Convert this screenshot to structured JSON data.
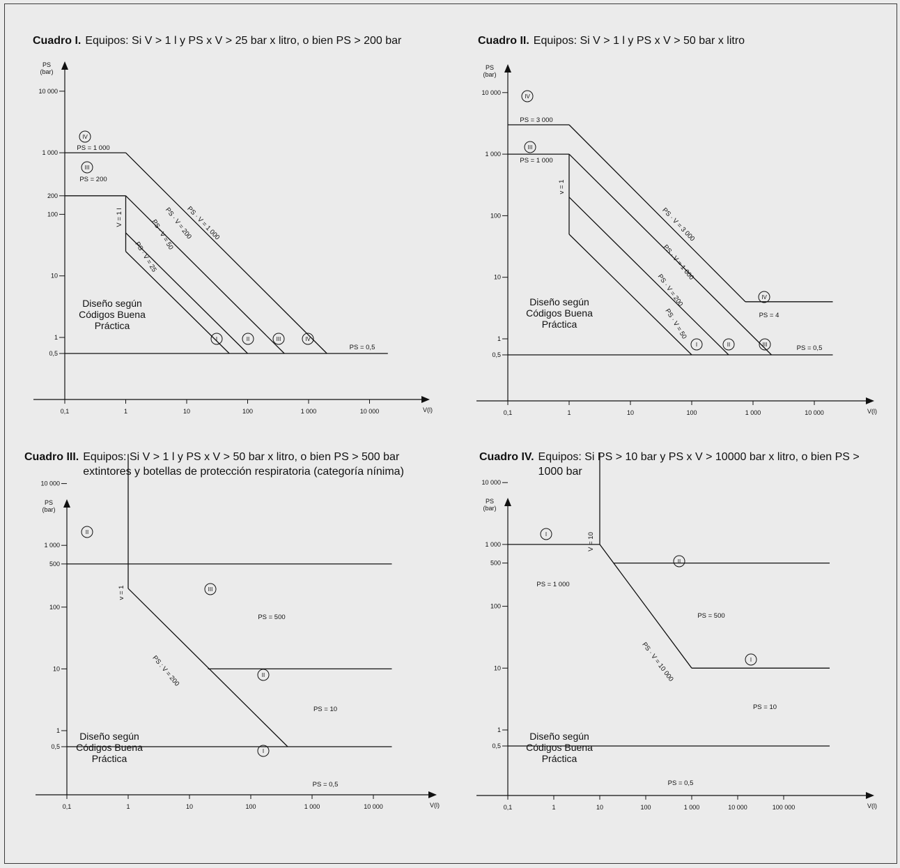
{
  "charts": [
    {
      "caption_title": "Cuadro I.",
      "caption_text": "Equipos: Si V > 1 l y PS x V > 25 bar x litro, o bien PS > 200 bar",
      "y_axis_label": [
        "PS",
        "(bar)"
      ],
      "x_axis_label": "V(l)",
      "y_ticks": [
        "10 000",
        "1 000",
        "200",
        "100",
        "10",
        "1",
        "0,5"
      ],
      "x_ticks": [
        "0,1",
        "1",
        "10",
        "100",
        "1 000",
        "10 000"
      ],
      "region_text": [
        "Diseño según",
        "Códigos Buena",
        "Práctica"
      ],
      "labels": [
        "PS = 1 000",
        "PS = 200",
        "V = 1 l",
        "PS · V = 25",
        "PS · V = 50",
        "PS · V = 200",
        "PS · V = 1 000",
        "PS = 0,5"
      ],
      "romans": [
        "IV",
        "III",
        "I",
        "II",
        "III",
        "IV"
      ]
    },
    {
      "caption_title": "Cuadro II.",
      "caption_text": "Equipos: Si V > 1 l y PS x V > 50 bar x litro",
      "y_axis_label": [
        "PS",
        "(bar)"
      ],
      "x_axis_label": "V(l)",
      "y_ticks": [
        "10 000",
        "1 000",
        "100",
        "10",
        "1",
        "0,5"
      ],
      "x_ticks": [
        "0,1",
        "1",
        "10",
        "100",
        "1 000",
        "10 000"
      ],
      "region_text": [
        "Diseño según",
        "Códigos Buena",
        "Práctica"
      ],
      "labels": [
        "PS = 3 000",
        "PS = 1 000",
        "v = 1",
        "PS · V = 50",
        "PS · V = 200",
        "PS · V = 1 000",
        "PS · V = 3 000",
        "PS = 4",
        "PS = 0,5"
      ],
      "romans": [
        "IV",
        "III",
        "I",
        "II",
        "III",
        "IV"
      ]
    },
    {
      "caption_title": "Cuadro III.",
      "caption_text": "Equipos: Si V > 1 l y PS x V > 50 bar x litro, o bien PS > 500 bar extintores y botellas de protección respiratoria (categoría nínima)",
      "y_axis_label": [
        "PS",
        "(bar)"
      ],
      "x_axis_label": "V(l)",
      "y_ticks": [
        "10 000",
        "1 000",
        "500",
        "100",
        "10",
        "1",
        "0,5"
      ],
      "x_ticks": [
        "0,1",
        "1",
        "10",
        "100",
        "1 000",
        "10 000"
      ],
      "region_text": [
        "Diseño según",
        "Códigos Buena",
        "Práctica"
      ],
      "labels": [
        "v = 1",
        "PS = 500",
        "PS : V = 200",
        "PS = 10",
        "PS = 0,5"
      ],
      "romans": [
        "II",
        "III",
        "II",
        "I"
      ]
    },
    {
      "caption_title": "Cuadro IV.",
      "caption_text": "Equipos: Si PS > 10 bar y PS x V > 10000 bar x litro, o bien PS > 1000 bar",
      "y_axis_label": [
        "PS",
        "(bar)"
      ],
      "x_axis_label": "V(l)",
      "y_ticks": [
        "10 000",
        "1 000",
        "500",
        "100",
        "10",
        "1",
        "0,5"
      ],
      "x_ticks": [
        "0,1",
        "1",
        "10",
        "100",
        "1 000",
        "10 000",
        "100 000"
      ],
      "region_text": [
        "Diseño según",
        "Códigos Buena",
        "Práctica"
      ],
      "labels": [
        "V = 10",
        "PS = 1 000",
        "PS = 500",
        "PS · V = 10 000",
        "PS = 10",
        "PS = 0,5"
      ],
      "romans": [
        "I",
        "II",
        "I"
      ]
    }
  ],
  "chart_data": [
    {
      "type": "line",
      "title": "Cuadro I. Equipos: Si V > 1 l y PS x V > 25 bar x litro, o bien PS > 200 bar",
      "xlabel": "V(l)",
      "ylabel": "PS (bar)",
      "x_scale": "log",
      "y_scale": "log",
      "xlim": [
        0.1,
        20000
      ],
      "ylim": [
        0.5,
        10000
      ],
      "series": [
        {
          "name": "PS = 1 000",
          "x": [
            0.1,
            1
          ],
          "y": [
            1000,
            1000
          ]
        },
        {
          "name": "PS = 200",
          "x": [
            0.1,
            1
          ],
          "y": [
            200,
            200
          ]
        },
        {
          "name": "V = 1 l",
          "x": [
            1,
            1
          ],
          "y": [
            25,
            200
          ]
        },
        {
          "name": "PS · V = 25",
          "x": [
            1,
            50
          ],
          "y": [
            25,
            0.5
          ]
        },
        {
          "name": "PS · V = 50",
          "x": [
            1,
            100
          ],
          "y": [
            50,
            0.5
          ]
        },
        {
          "name": "PS · V = 200",
          "x": [
            1,
            400
          ],
          "y": [
            200,
            0.5
          ]
        },
        {
          "name": "PS · V = 1 000",
          "x": [
            1,
            2000
          ],
          "y": [
            1000,
            0.5
          ]
        },
        {
          "name": "PS = 0,5",
          "x": [
            0.1,
            20000
          ],
          "y": [
            0.5,
            0.5
          ]
        }
      ]
    },
    {
      "type": "line",
      "title": "Cuadro II. Equipos: Si V > 1 l y PS x V > 50 bar x litro",
      "xlabel": "V(l)",
      "ylabel": "PS (bar)",
      "x_scale": "log",
      "y_scale": "log",
      "xlim": [
        0.1,
        20000
      ],
      "ylim": [
        0.5,
        10000
      ],
      "series": [
        {
          "name": "PS = 3 000",
          "x": [
            0.1,
            1
          ],
          "y": [
            3000,
            3000
          ]
        },
        {
          "name": "PS = 1 000",
          "x": [
            0.1,
            1
          ],
          "y": [
            1000,
            1000
          ]
        },
        {
          "name": "v = 1",
          "x": [
            1,
            1
          ],
          "y": [
            50,
            1000
          ]
        },
        {
          "name": "PS · V = 50",
          "x": [
            1,
            100
          ],
          "y": [
            50,
            0.5
          ]
        },
        {
          "name": "PS · V = 200",
          "x": [
            1,
            400
          ],
          "y": [
            200,
            0.5
          ]
        },
        {
          "name": "PS · V = 1 000",
          "x": [
            1,
            2000
          ],
          "y": [
            1000,
            0.5
          ]
        },
        {
          "name": "PS · V = 3 000",
          "x": [
            1,
            750
          ],
          "y": [
            3000,
            4
          ]
        },
        {
          "name": "PS = 4",
          "x": [
            750,
            20000
          ],
          "y": [
            4,
            4
          ]
        },
        {
          "name": "PS = 0,5",
          "x": [
            0.1,
            20000
          ],
          "y": [
            0.5,
            0.5
          ]
        }
      ]
    },
    {
      "type": "line",
      "title": "Cuadro III. Equipos: Si V > 1 l y PS x V > 50 bar x litro, o bien PS > 500 bar extintores y botellas de protección respiratoria (categoría nínima)",
      "xlabel": "V(l)",
      "ylabel": "PS (bar)",
      "x_scale": "log",
      "y_scale": "log",
      "xlim": [
        0.1,
        20000
      ],
      "ylim": [
        0.5,
        10000
      ],
      "series": [
        {
          "name": "v = 1",
          "x": [
            1,
            1
          ],
          "y": [
            200,
            30000
          ]
        },
        {
          "name": "PS = 500",
          "x": [
            0.1,
            20000
          ],
          "y": [
            500,
            500
          ]
        },
        {
          "name": "PS : V = 200",
          "x": [
            1,
            400
          ],
          "y": [
            200,
            0.5
          ]
        },
        {
          "name": "PS = 10",
          "x": [
            20,
            20000
          ],
          "y": [
            10,
            10
          ]
        },
        {
          "name": "PS = 0,5",
          "x": [
            0.1,
            20000
          ],
          "y": [
            0.5,
            0.5
          ]
        }
      ]
    },
    {
      "type": "line",
      "title": "Cuadro IV. Equipos: Si PS > 10 bar y PS x V > 10000 bar x litro, o bien PS > 1000 bar",
      "xlabel": "V(l)",
      "ylabel": "PS (bar)",
      "x_scale": "log",
      "y_scale": "log",
      "xlim": [
        0.1,
        1000000
      ],
      "ylim": [
        0.5,
        10000
      ],
      "series": [
        {
          "name": "V = 10",
          "x": [
            10,
            10
          ],
          "y": [
            1000,
            30000
          ]
        },
        {
          "name": "PS = 1 000",
          "x": [
            0.1,
            10
          ],
          "y": [
            1000,
            1000
          ]
        },
        {
          "name": "PS · V = 10 000",
          "x": [
            10,
            1000
          ],
          "y": [
            1000,
            10
          ]
        },
        {
          "name": "PS = 500",
          "x": [
            20,
            1000000
          ],
          "y": [
            500,
            500
          ]
        },
        {
          "name": "PS = 10",
          "x": [
            1000,
            1000000
          ],
          "y": [
            10,
            10
          ]
        },
        {
          "name": "PS = 0,5",
          "x": [
            0.1,
            1000000
          ],
          "y": [
            0.5,
            0.5
          ]
        }
      ]
    }
  ]
}
